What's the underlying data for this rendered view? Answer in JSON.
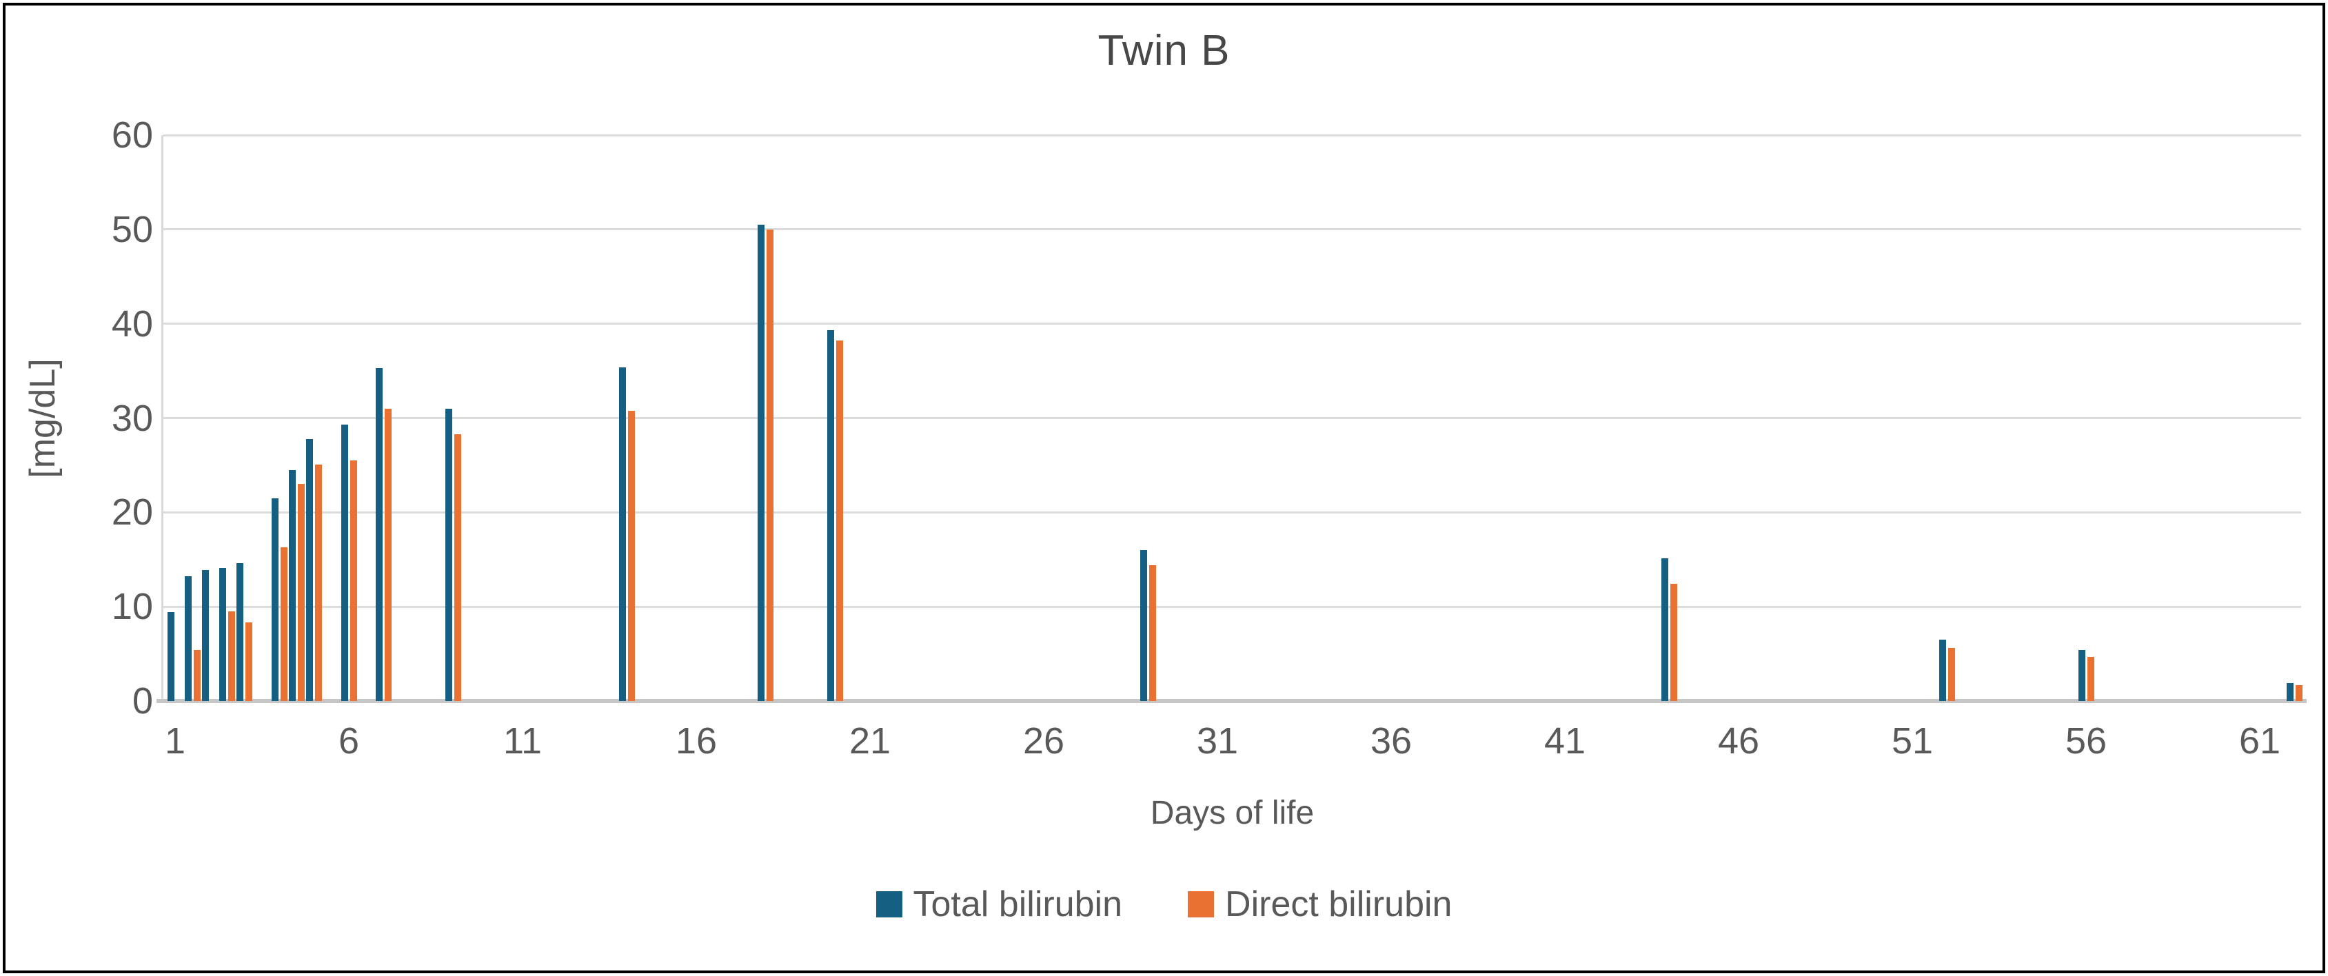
{
  "title": "Twin B",
  "colors": {
    "total_bilirubin": "#156082",
    "direct_bilirubin": "#E97132",
    "gridline": "#DCDCDC",
    "axis_line": "#C6C6C6",
    "text": "#595959",
    "border": "#000000"
  },
  "chart_data": {
    "type": "bar",
    "title": "Twin B",
    "xlabel": "Days of life",
    "ylabel": "[mg/dL]",
    "ylim": [
      0,
      60
    ],
    "y_ticks": [
      0,
      10,
      20,
      30,
      40,
      50,
      60
    ],
    "x_ticks": [
      1,
      6,
      11,
      16,
      21,
      26,
      31,
      36,
      41,
      46,
      51,
      56,
      61
    ],
    "grid": true,
    "legend_position": "bottom",
    "series": [
      {
        "name": "Total bilirubin",
        "color": "#156082"
      },
      {
        "name": "Direct bilirubin",
        "color": "#E97132"
      }
    ],
    "points": [
      {
        "day": 1,
        "total": 9.4,
        "direct": null
      },
      {
        "day": 1.5,
        "total": 13.2,
        "direct": 5.4
      },
      {
        "day": 2,
        "total": 13.9,
        "direct": null
      },
      {
        "day": 2.5,
        "total": 14.1,
        "direct": 9.5
      },
      {
        "day": 3,
        "total": 14.6,
        "direct": 8.3
      },
      {
        "day": 4,
        "total": 21.5,
        "direct": 16.3
      },
      {
        "day": 4.5,
        "total": 24.5,
        "direct": 23.0
      },
      {
        "day": 5,
        "total": 27.8,
        "direct": 25.1
      },
      {
        "day": 6,
        "total": 29.3,
        "direct": 25.5
      },
      {
        "day": 7,
        "total": 35.3,
        "direct": 31.0
      },
      {
        "day": 9,
        "total": 31.0,
        "direct": 28.3
      },
      {
        "day": 14,
        "total": 35.4,
        "direct": 30.8
      },
      {
        "day": 18,
        "total": 50.5,
        "direct": 50.0
      },
      {
        "day": 20,
        "total": 39.3,
        "direct": 38.2
      },
      {
        "day": 29,
        "total": 16.0,
        "direct": 14.4
      },
      {
        "day": 44,
        "total": 15.1,
        "direct": 12.4
      },
      {
        "day": 52,
        "total": 6.5,
        "direct": 5.6
      },
      {
        "day": 56,
        "total": 5.4,
        "direct": 4.7
      },
      {
        "day": 62,
        "total": 1.9,
        "direct": 1.7
      }
    ]
  }
}
